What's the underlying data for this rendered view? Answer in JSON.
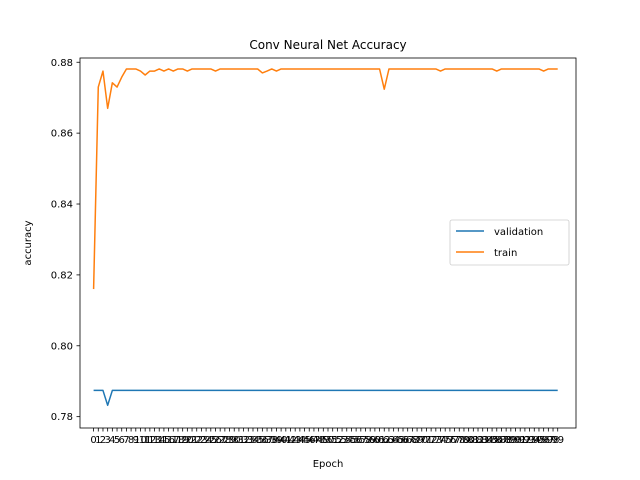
{
  "chart_data": {
    "type": "line",
    "title": "Conv Neural Net Accuracy",
    "xlabel": "Epoch",
    "ylabel": "accuracy",
    "xlim": [
      -2.9,
      102.9
    ],
    "ylim": [
      0.7768,
      0.8812
    ],
    "y_ticks": [
      0.78,
      0.8,
      0.82,
      0.84,
      0.86,
      0.88
    ],
    "x": [
      0,
      1,
      2,
      3,
      4,
      5,
      6,
      7,
      8,
      9,
      10,
      11,
      12,
      13,
      14,
      15,
      16,
      17,
      18,
      19,
      20,
      21,
      22,
      23,
      24,
      25,
      26,
      27,
      28,
      29,
      30,
      31,
      32,
      33,
      34,
      35,
      36,
      37,
      38,
      39,
      40,
      41,
      42,
      43,
      44,
      45,
      46,
      47,
      48,
      49,
      50,
      51,
      52,
      53,
      54,
      55,
      56,
      57,
      58,
      59,
      60,
      61,
      62,
      63,
      64,
      65,
      66,
      67,
      68,
      69,
      70,
      71,
      72,
      73,
      74,
      75,
      76,
      77,
      78,
      79,
      80,
      81,
      82,
      83,
      84,
      85,
      86,
      87,
      88,
      89,
      90,
      91,
      92,
      93,
      94,
      95,
      96,
      97,
      98,
      99
    ],
    "legend_position": "center-right",
    "grid": false,
    "series": [
      {
        "name": "validation",
        "color": "#1f77b4",
        "values": [
          0.7874,
          0.7874,
          0.7874,
          0.7832,
          0.7874,
          0.7874,
          0.7874,
          0.7874,
          0.7874,
          0.7874,
          0.7874,
          0.7874,
          0.7874,
          0.7874,
          0.7874,
          0.7874,
          0.7874,
          0.7874,
          0.7874,
          0.7874,
          0.7874,
          0.7874,
          0.7874,
          0.7874,
          0.7874,
          0.7874,
          0.7874,
          0.7874,
          0.7874,
          0.7874,
          0.7874,
          0.7874,
          0.7874,
          0.7874,
          0.7874,
          0.7874,
          0.7874,
          0.7874,
          0.7874,
          0.7874,
          0.7874,
          0.7874,
          0.7874,
          0.7874,
          0.7874,
          0.7874,
          0.7874,
          0.7874,
          0.7874,
          0.7874,
          0.7874,
          0.7874,
          0.7874,
          0.7874,
          0.7874,
          0.7874,
          0.7874,
          0.7874,
          0.7874,
          0.7874,
          0.7874,
          0.7874,
          0.7874,
          0.7874,
          0.7874,
          0.7874,
          0.7874,
          0.7874,
          0.7874,
          0.7874,
          0.7874,
          0.7874,
          0.7874,
          0.7874,
          0.7874,
          0.7874,
          0.7874,
          0.7874,
          0.7874,
          0.7874,
          0.7874,
          0.7874,
          0.7874,
          0.7874,
          0.7874,
          0.7874,
          0.7874,
          0.7874,
          0.7874,
          0.7874,
          0.7874,
          0.7874,
          0.7874,
          0.7874,
          0.7874,
          0.7874,
          0.7874,
          0.7874,
          0.7874,
          0.7874
        ]
      },
      {
        "name": "train",
        "color": "#ff7f0e",
        "values": [
          0.816,
          0.873,
          0.8775,
          0.867,
          0.8742,
          0.873,
          0.8758,
          0.8781,
          0.8781,
          0.8781,
          0.8775,
          0.8764,
          0.8775,
          0.8775,
          0.8781,
          0.8775,
          0.8781,
          0.8775,
          0.8781,
          0.8781,
          0.8775,
          0.8781,
          0.8781,
          0.8781,
          0.8781,
          0.8781,
          0.8775,
          0.8781,
          0.8781,
          0.8781,
          0.8781,
          0.8781,
          0.8781,
          0.8781,
          0.8781,
          0.8781,
          0.877,
          0.8775,
          0.8781,
          0.8775,
          0.8781,
          0.8781,
          0.8781,
          0.8781,
          0.8781,
          0.8781,
          0.8781,
          0.8781,
          0.8781,
          0.8781,
          0.8781,
          0.8781,
          0.8781,
          0.8781,
          0.8781,
          0.8781,
          0.8781,
          0.8781,
          0.8781,
          0.8781,
          0.8781,
          0.8781,
          0.8724,
          0.8781,
          0.8781,
          0.8781,
          0.8781,
          0.8781,
          0.8781,
          0.8781,
          0.8781,
          0.8781,
          0.8781,
          0.8781,
          0.8775,
          0.8781,
          0.8781,
          0.8781,
          0.8781,
          0.8781,
          0.8781,
          0.8781,
          0.8781,
          0.8781,
          0.8781,
          0.8781,
          0.8775,
          0.8781,
          0.8781,
          0.8781,
          0.8781,
          0.8781,
          0.8781,
          0.8781,
          0.8781,
          0.8781,
          0.8775,
          0.8781,
          0.8781,
          0.8781
        ]
      }
    ]
  }
}
